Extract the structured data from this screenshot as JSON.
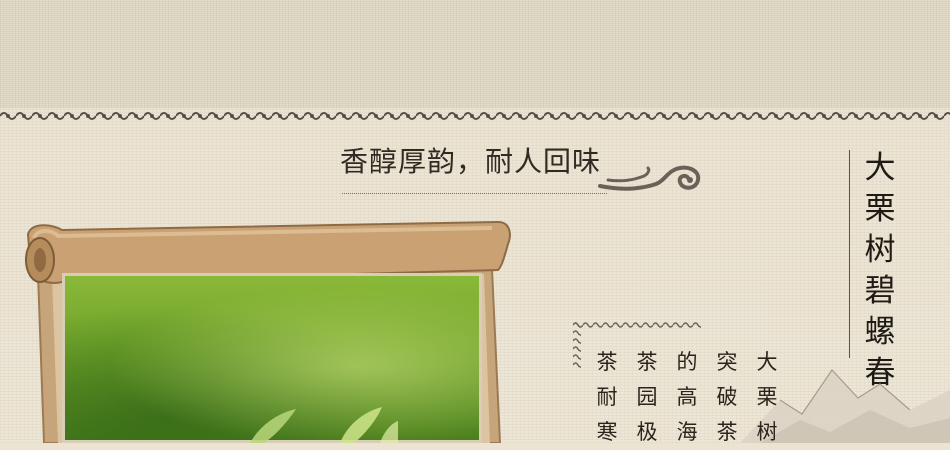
{
  "headline": "香醇厚韵，耐人回味",
  "title_vertical": [
    "大",
    "栗",
    "树",
    "碧",
    "螺",
    "春"
  ],
  "body_columns": [
    [
      "大",
      "栗",
      "树"
    ],
    [
      "突",
      "破",
      "茶"
    ],
    [
      "的",
      "高",
      "海"
    ],
    [
      "茶",
      "园",
      "极"
    ],
    [
      "茶",
      "耐",
      "寒"
    ]
  ],
  "colors": {
    "ink": "#2f2a22",
    "paper": "#ece4d3",
    "border": "#5a554c"
  }
}
